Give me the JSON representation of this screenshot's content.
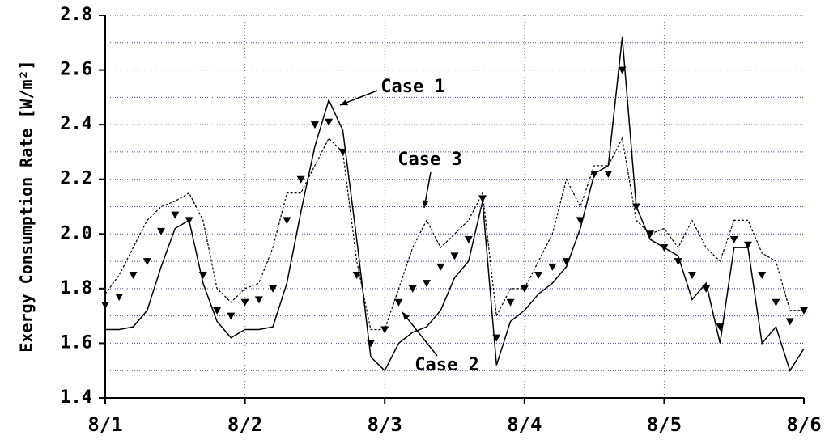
{
  "chart_data": {
    "type": "line",
    "ylabel": "Exergy Consumption Rate [W/m²]",
    "x": [
      0,
      0.1,
      0.2,
      0.3,
      0.4,
      0.5,
      0.6,
      0.7,
      0.8,
      0.9,
      1,
      1.1,
      1.2,
      1.3,
      1.4,
      1.5,
      1.6,
      1.7,
      1.8,
      1.9,
      2,
      2.1,
      2.2,
      2.3,
      2.4,
      2.5,
      2.6,
      2.7,
      2.8,
      2.9,
      3,
      3.1,
      3.2,
      3.3,
      3.4,
      3.5,
      3.6,
      3.7,
      3.8,
      3.9,
      4,
      4.1,
      4.2,
      4.3,
      4.4,
      4.5,
      4.6,
      4.7,
      4.8,
      4.9,
      5
    ],
    "series": [
      {
        "name": "Case 1",
        "color": "#000000",
        "style": "solid",
        "values": [
          1.65,
          1.65,
          1.66,
          1.72,
          1.88,
          2.02,
          2.05,
          1.82,
          1.68,
          1.62,
          1.65,
          1.65,
          1.66,
          1.82,
          2.08,
          2.32,
          2.49,
          2.38,
          1.98,
          1.55,
          1.5,
          1.6,
          1.64,
          1.66,
          1.72,
          1.84,
          1.9,
          2.12,
          1.52,
          1.68,
          1.72,
          1.78,
          1.82,
          1.88,
          2.02,
          2.22,
          2.25,
          2.72,
          2.1,
          1.98,
          1.95,
          1.92,
          1.76,
          1.82,
          1.6,
          1.95,
          1.95,
          1.6,
          1.66,
          1.5,
          1.58
        ]
      },
      {
        "name": "Case 2",
        "color": "#000000",
        "style": "marker",
        "values": [
          1.74,
          1.77,
          1.85,
          1.9,
          2.01,
          2.07,
          2.05,
          1.85,
          1.72,
          1.7,
          1.75,
          1.76,
          1.8,
          2.05,
          2.2,
          2.4,
          2.41,
          2.3,
          1.85,
          1.6,
          1.65,
          1.75,
          1.8,
          1.82,
          1.88,
          1.92,
          1.98,
          2.13,
          1.62,
          1.75,
          1.8,
          1.85,
          1.88,
          1.9,
          2.05,
          2.22,
          2.22,
          2.6,
          2.1,
          2.0,
          1.95,
          1.9,
          1.85,
          1.8,
          1.66,
          1.98,
          1.96,
          1.85,
          1.75,
          1.68,
          1.72
        ]
      },
      {
        "name": "Case 3",
        "color": "#000000",
        "style": "dashed",
        "values": [
          1.78,
          1.85,
          1.95,
          2.05,
          2.1,
          2.12,
          2.15,
          2.05,
          1.8,
          1.75,
          1.8,
          1.82,
          1.95,
          2.15,
          2.15,
          2.25,
          2.35,
          2.3,
          1.9,
          1.65,
          1.65,
          1.8,
          1.95,
          2.05,
          1.95,
          2.0,
          2.05,
          2.15,
          1.7,
          1.8,
          1.8,
          1.9,
          2.0,
          2.2,
          2.1,
          2.25,
          2.25,
          2.35,
          2.05,
          2.0,
          2.02,
          1.95,
          2.05,
          1.95,
          1.9,
          2.05,
          2.05,
          1.93,
          1.9,
          1.72,
          1.72
        ]
      }
    ],
    "xlim": [
      0,
      5
    ],
    "xticks": [
      {
        "value": 0,
        "label": "8/1"
      },
      {
        "value": 1,
        "label": "8/2"
      },
      {
        "value": 2,
        "label": "8/3"
      },
      {
        "value": 3,
        "label": "8/4"
      },
      {
        "value": 4,
        "label": "8/5"
      },
      {
        "value": 5,
        "label": "8/6"
      }
    ],
    "ylim": [
      1.4,
      2.8
    ],
    "yticks": [
      1.4,
      1.6,
      1.8,
      {
        "value": 2,
        "label": "2.0"
      },
      2.2,
      2.4,
      2.6,
      2.8
    ],
    "minor_yticks": [
      1.5,
      1.7,
      1.9,
      2.1,
      2.3,
      2.5,
      2.7
    ],
    "grid": true
  }
}
